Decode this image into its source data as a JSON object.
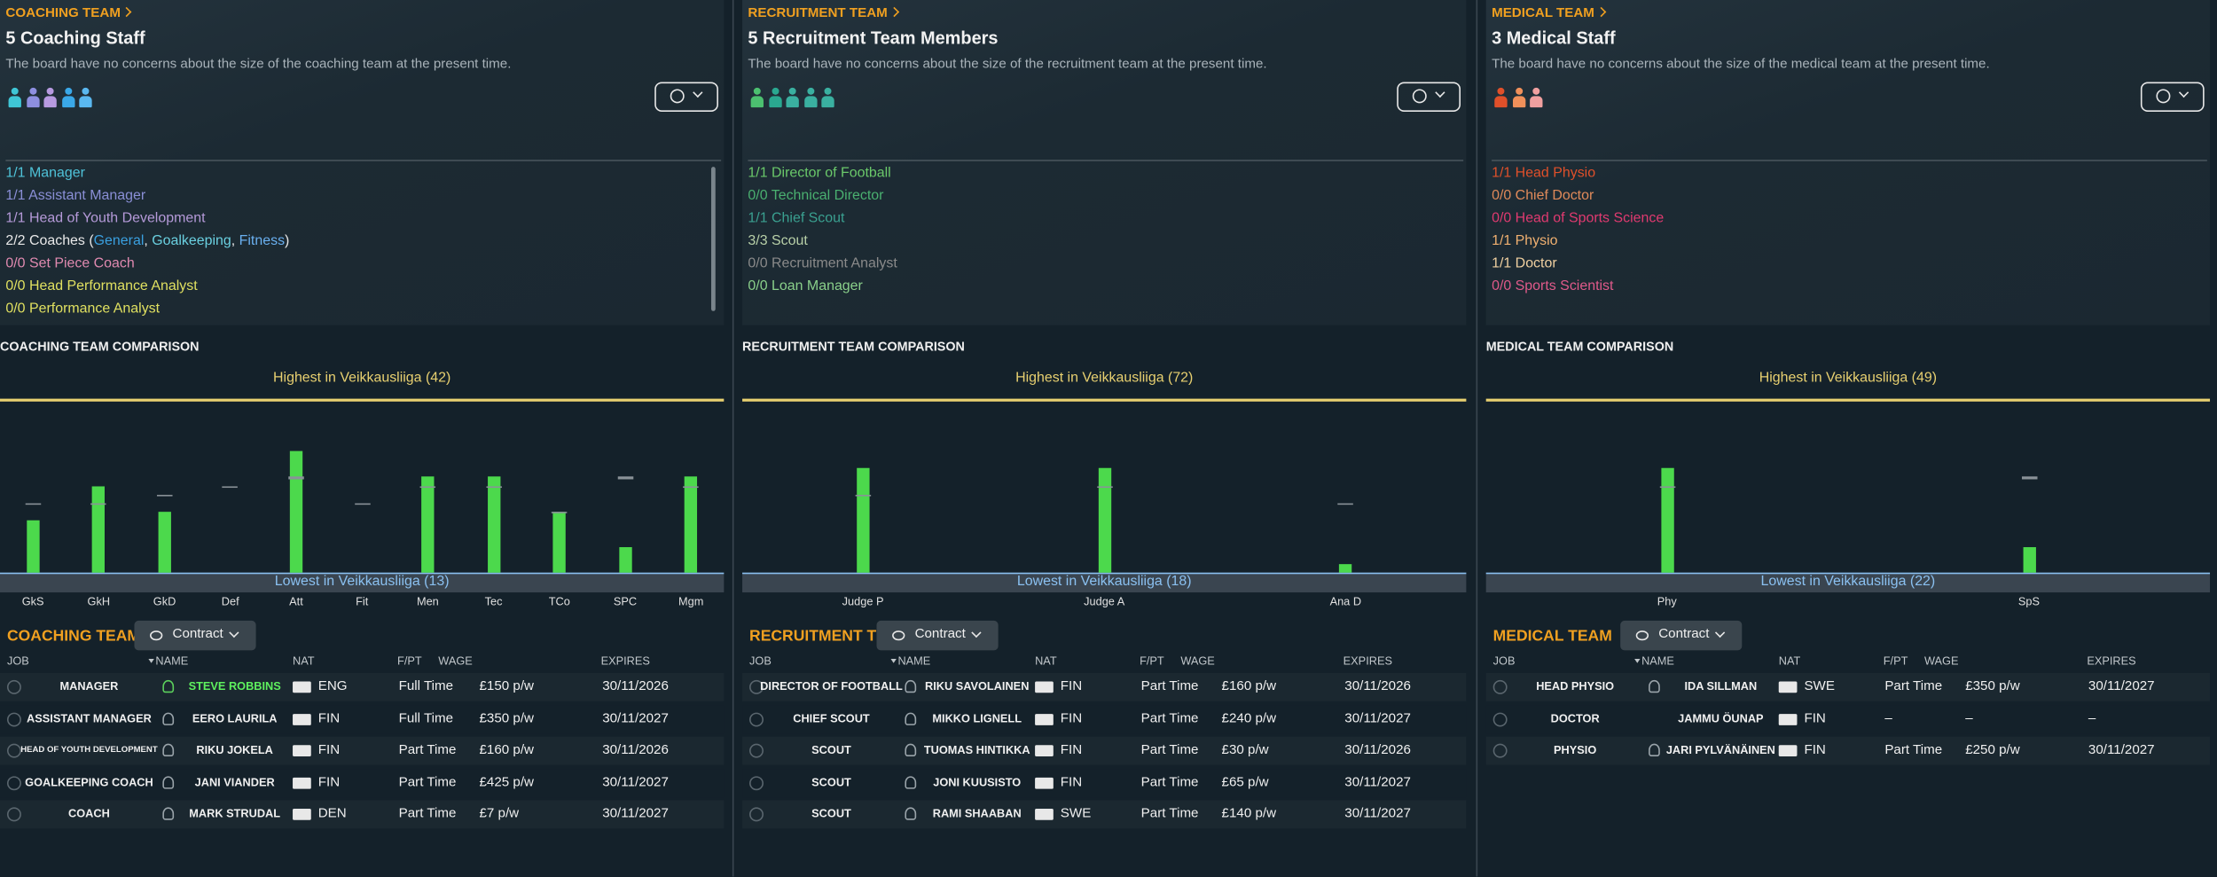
{
  "panels": [
    {
      "header": "COACHING TEAM",
      "title": "5 Coaching Staff",
      "note": "The board have no concerns about the size of the coaching team at the present time.",
      "staff_icon_colors": [
        "#3fc6d6",
        "#8e8fe0",
        "#b79ae0",
        "#3aa8e8",
        "#5ab8f0"
      ],
      "roles": [
        {
          "parts": [
            {
              "text": "1/1 Manager",
              "color": "#4fc3d9"
            }
          ]
        },
        {
          "parts": [
            {
              "text": "1/1 Assistant Manager",
              "color": "#8a8fd6"
            }
          ]
        },
        {
          "parts": [
            {
              "text": "1/1 Head of Youth Development",
              "color": "#b59ad9"
            }
          ]
        },
        {
          "parts": [
            {
              "text": "2/2 Coaches (",
              "color": "#e8e8e8"
            },
            {
              "text": "General",
              "color": "#3aa0e0"
            },
            {
              "text": ", ",
              "color": "#e8e8e8"
            },
            {
              "text": "Goalkeeping",
              "color": "#6ad0e0"
            },
            {
              "text": ", ",
              "color": "#e8e8e8"
            },
            {
              "text": "Fitness",
              "color": "#6ab0f0"
            },
            {
              "text": ")",
              "color": "#e8e8e8"
            }
          ]
        },
        {
          "parts": [
            {
              "text": "0/0 Set Piece Coach",
              "color": "#e08ab0"
            }
          ]
        },
        {
          "parts": [
            {
              "text": "0/0 Head Performance Analyst",
              "color": "#e0e060"
            }
          ]
        },
        {
          "parts": [
            {
              "text": "0/0 Performance Analyst",
              "color": "#e0e060"
            }
          ]
        }
      ],
      "comparison": {
        "title": "COACHING TEAM COMPARISON",
        "highest": "Highest in Veikkausliiga (42)",
        "lowest": "Lowest in Veikkausliiga (13)",
        "categories": [
          "GkS",
          "GkH",
          "GkD",
          "Def",
          "Att",
          "Fit",
          "Men",
          "Tec",
          "TCo",
          "SPC",
          "Mgm"
        ],
        "values": [
          6,
          10,
          7,
          0,
          14,
          0,
          11,
          11,
          7,
          3,
          11
        ],
        "average": [
          8,
          8,
          9,
          10,
          11,
          8,
          10,
          10,
          7,
          11,
          10
        ],
        "color": "#4cd94c"
      },
      "table": {
        "title": "COACHING TEAM",
        "filter": "Contract",
        "columns": [
          "JOB",
          "NAME",
          "NAT",
          "F/PT",
          "WAGE",
          "EXPIRES"
        ],
        "rows": [
          [
            "MANAGER",
            "STEVE ROBBINS",
            "ENG",
            "Full Time",
            "£150 p/w",
            "30/11/2026"
          ],
          [
            "ASSISTANT MANAGER",
            "EERO LAURILA",
            "FIN",
            "Full Time",
            "£350 p/w",
            "30/11/2027"
          ],
          [
            "HEAD OF YOUTH DEVELOPMENT",
            "RIKU JOKELA",
            "FIN",
            "Part Time",
            "£160 p/w",
            "30/11/2026"
          ],
          [
            "GOALKEEPING COACH",
            "JANI VIANDER",
            "FIN",
            "Part Time",
            "£425 p/w",
            "30/11/2027"
          ],
          [
            "COACH",
            "MARK STRUDAL",
            "DEN",
            "Part Time",
            "£7 p/w",
            "30/11/2027"
          ]
        ]
      }
    },
    {
      "header": "RECRUITMENT TEAM",
      "title": "5 Recruitment Team Members",
      "note": "The board have no concerns about the size of the recruitment team at the present time.",
      "staff_icon_colors": [
        "#4cc070",
        "#2aa890",
        "#3ab0a0",
        "#3ab0a0",
        "#3ab0a0"
      ],
      "roles": [
        {
          "parts": [
            {
              "text": "1/1 Director of Football",
              "color": "#6ac86a"
            }
          ]
        },
        {
          "parts": [
            {
              "text": "0/0 Technical Director",
              "color": "#4ab070"
            }
          ]
        },
        {
          "parts": [
            {
              "text": "1/1 Chief Scout",
              "color": "#3aa090"
            }
          ]
        },
        {
          "parts": [
            {
              "text": "3/3 Scout",
              "color": "#b8d0a8"
            }
          ]
        },
        {
          "parts": [
            {
              "text": "0/0 Recruitment Analyst",
              "color": "#8a8a8a"
            }
          ]
        },
        {
          "parts": [
            {
              "text": "0/0 Loan Manager",
              "color": "#8ad08a"
            }
          ]
        }
      ],
      "comparison": {
        "title": "RECRUITMENT TEAM COMPARISON",
        "highest": "Highest in Veikkausliiga (72)",
        "lowest": "Lowest in Veikkausliiga (18)",
        "categories": [
          "Judge P",
          "Judge A",
          "Ana D"
        ],
        "values": [
          12,
          12,
          1
        ],
        "average": [
          9,
          10,
          8
        ],
        "color": "#4cd94c"
      },
      "table": {
        "title": "RECRUITMENT TEAM",
        "filter": "Contract",
        "columns": [
          "JOB",
          "NAME",
          "NAT",
          "F/PT",
          "WAGE",
          "EXPIRES"
        ],
        "rows": [
          [
            "DIRECTOR OF FOOTBALL",
            "RIKU SAVOLAINEN",
            "FIN",
            "Part Time",
            "£160 p/w",
            "30/11/2026"
          ],
          [
            "CHIEF SCOUT",
            "MIKKO LIGNELL",
            "FIN",
            "Part Time",
            "£240 p/w",
            "30/11/2027"
          ],
          [
            "SCOUT",
            "TUOMAS HINTIKKA",
            "FIN",
            "Part Time",
            "£30 p/w",
            "30/11/2026"
          ],
          [
            "SCOUT",
            "JONI KUUSISTO",
            "FIN",
            "Part Time",
            "£65 p/w",
            "30/11/2027"
          ],
          [
            "SCOUT",
            "RAMI SHAABAN",
            "SWE",
            "Part Time",
            "£140 p/w",
            "30/11/2027"
          ]
        ]
      }
    },
    {
      "header": "MEDICAL TEAM",
      "title": "3 Medical Staff",
      "note": "The board have no concerns about the size of the medical team at the present time.",
      "staff_icon_colors": [
        "#e0502a",
        "#f0905a",
        "#f0a0a0"
      ],
      "roles": [
        {
          "parts": [
            {
              "text": "1/1 Head Physio",
              "color": "#e0502a"
            }
          ]
        },
        {
          "parts": [
            {
              "text": "0/0 Chief Doctor",
              "color": "#e08a5a"
            }
          ]
        },
        {
          "parts": [
            {
              "text": "0/0 Head of Sports Science",
              "color": "#e03a70"
            }
          ]
        },
        {
          "parts": [
            {
              "text": "1/1 Physio",
              "color": "#f0b070"
            }
          ]
        },
        {
          "parts": [
            {
              "text": "1/1 Doctor",
              "color": "#f0d0a0"
            }
          ]
        },
        {
          "parts": [
            {
              "text": "0/0 Sports Scientist",
              "color": "#e05a8a"
            }
          ]
        }
      ],
      "comparison": {
        "title": "MEDICAL TEAM COMPARISON",
        "highest": "Highest in Veikkausliiga (49)",
        "lowest": "Lowest in Veikkausliiga (22)",
        "categories": [
          "Phy",
          "SpS"
        ],
        "values": [
          12,
          3
        ],
        "average": [
          10,
          11
        ],
        "color": "#4cd94c"
      },
      "table": {
        "title": "MEDICAL TEAM",
        "filter": "Contract",
        "columns": [
          "JOB",
          "NAME",
          "NAT",
          "F/PT",
          "WAGE",
          "EXPIRES"
        ],
        "rows": [
          [
            "HEAD PHYSIO",
            "IDA SILLMAN",
            "SWE",
            "Part Time",
            "£350 p/w",
            "30/11/2027"
          ],
          [
            "DOCTOR",
            "JAMMU ÖUNAP",
            "FIN",
            "–",
            "–",
            "–"
          ],
          [
            "PHYSIO",
            "JARI PYLVÄNÄINEN",
            "FIN",
            "Part Time",
            "£250 p/w",
            "30/11/2027"
          ]
        ]
      }
    }
  ]
}
